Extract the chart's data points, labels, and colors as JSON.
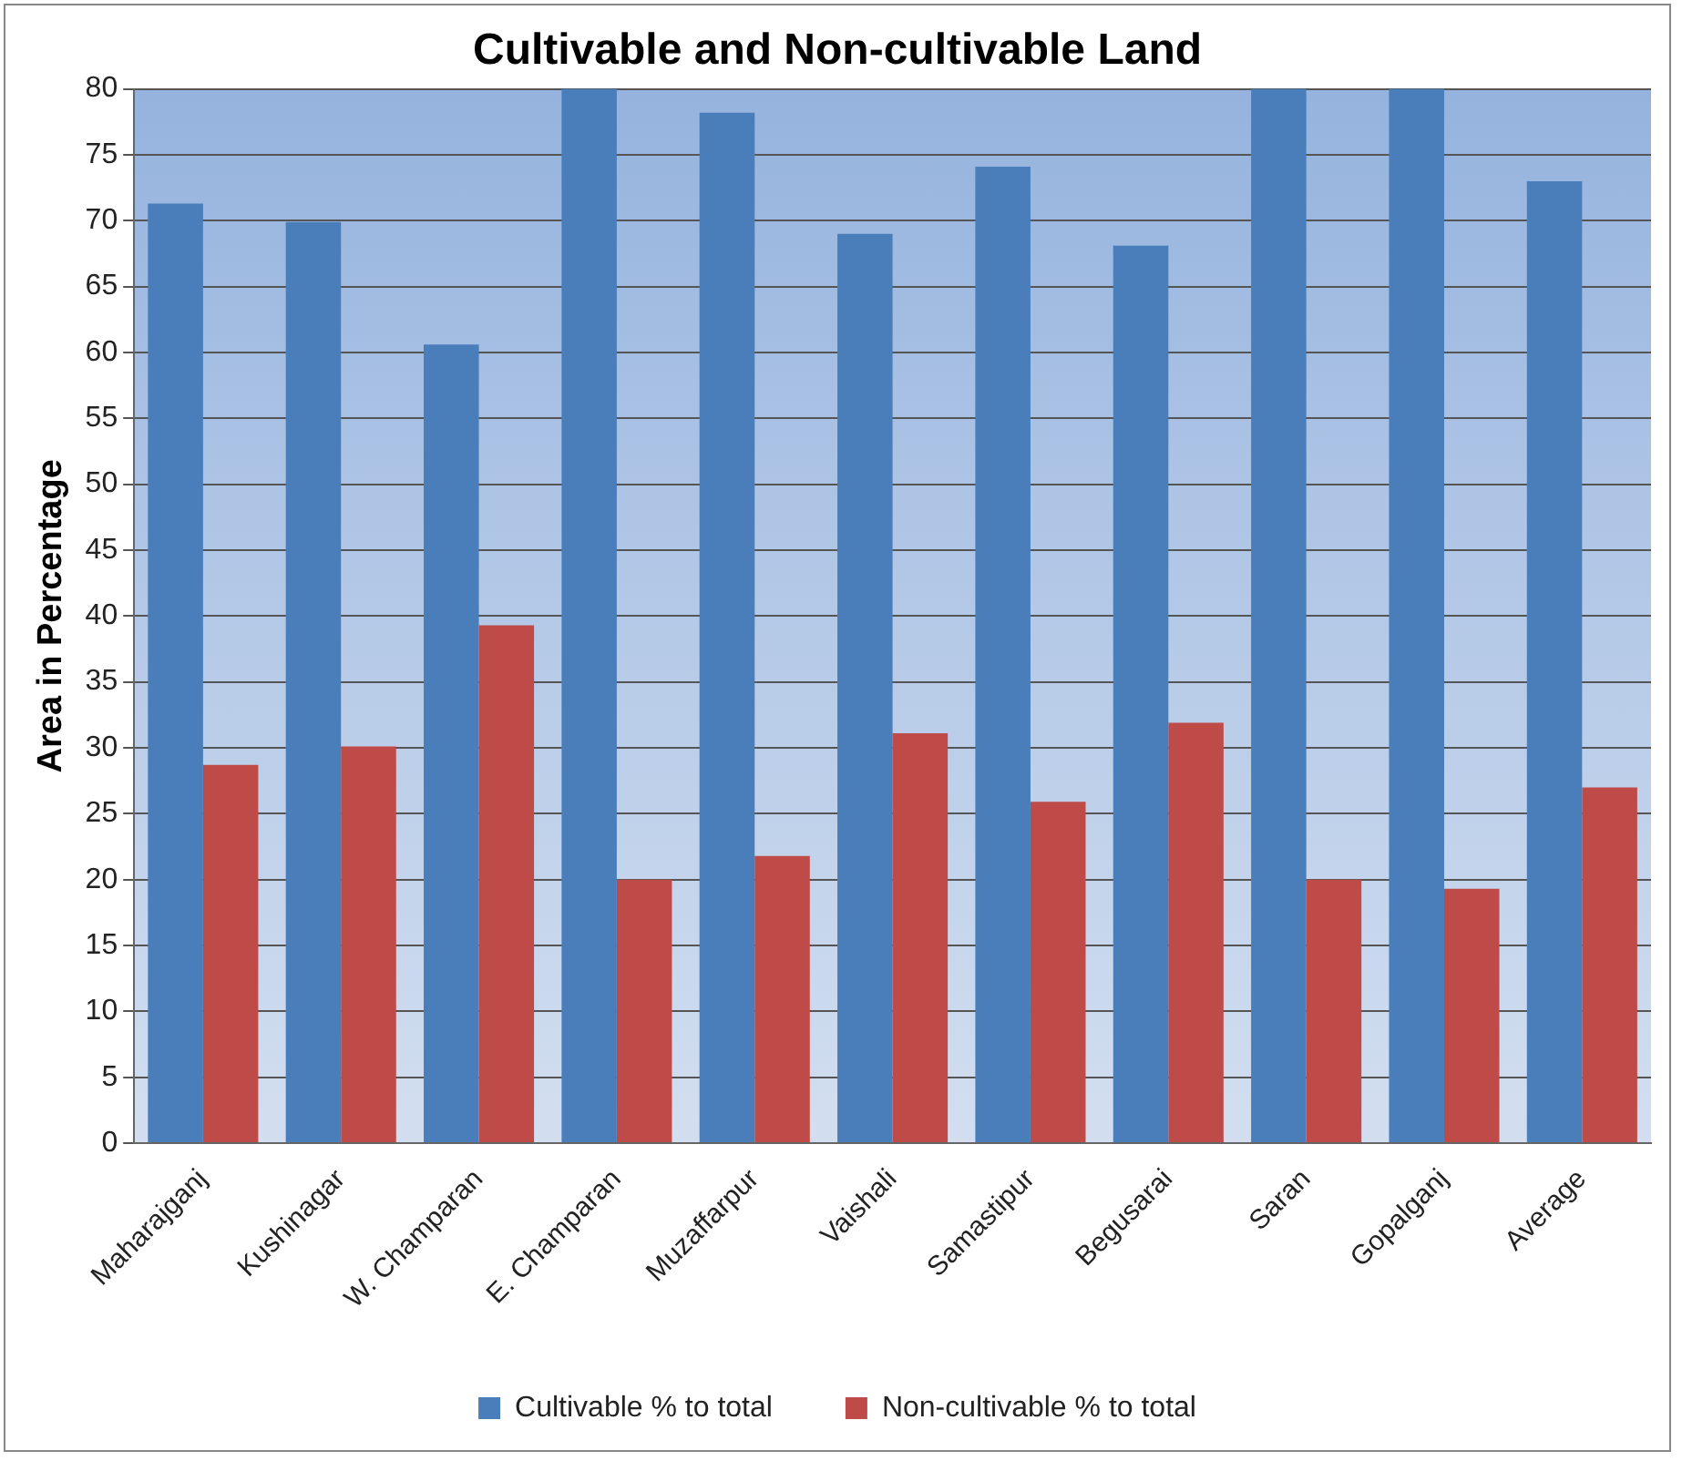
{
  "chart_data": {
    "type": "bar",
    "title": "Cultivable and Non-cultivable Land",
    "ylabel": "Area in Percentage",
    "categories": [
      "Maharajganj",
      "Kushinagar",
      "W. Champaran",
      "E. Champaran",
      "Muzaffarpur",
      "Vaishali",
      "Samastipur",
      "Begusarai",
      "Saran",
      "Gopalganj",
      "Average"
    ],
    "series": [
      {
        "name": "Cultivable % to total",
        "color": "#4a7ebb",
        "values": [
          71.3,
          69.9,
          60.6,
          80,
          78.2,
          69,
          74.1,
          68.1,
          80,
          80,
          73
        ]
      },
      {
        "name": "Non-cultivable % to total",
        "color": "#be4b48",
        "values": [
          28.7,
          30.1,
          39.3,
          20,
          21.8,
          31.1,
          25.9,
          31.9,
          20,
          19.3,
          27
        ]
      }
    ],
    "ylim": [
      0,
      80
    ],
    "yticks": [
      0,
      5,
      10,
      15,
      20,
      25,
      30,
      35,
      40,
      45,
      50,
      55,
      60,
      65,
      70,
      75,
      80
    ],
    "grid": "y",
    "legend": "bottom"
  }
}
